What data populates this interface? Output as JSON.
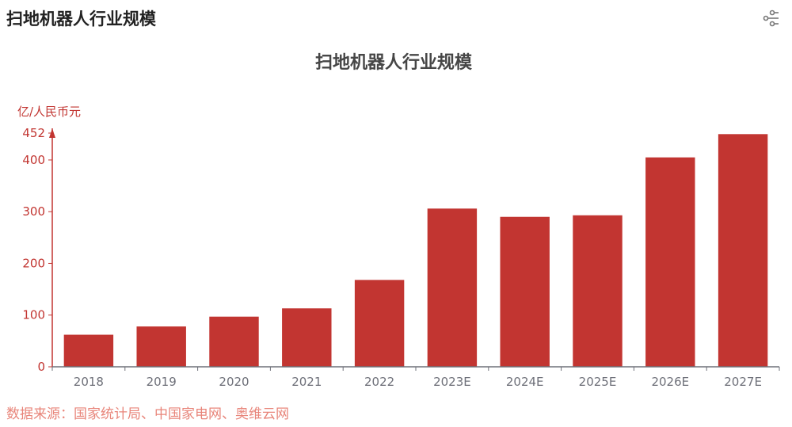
{
  "header": {
    "title": "扫地机器人行业规模",
    "share_icon": "share-icon"
  },
  "chart_data": {
    "type": "bar",
    "title": "扫地机器人行业规模",
    "ylabel": "亿/人民币元",
    "xlabel": "",
    "categories": [
      "2018",
      "2019",
      "2020",
      "2021",
      "2022",
      "2023E",
      "2024E",
      "2025E",
      "2026E",
      "2027E"
    ],
    "values": [
      62,
      78,
      97,
      113,
      168,
      306,
      290,
      293,
      405,
      450
    ],
    "y_ticks": [
      "0",
      "100",
      "200",
      "300",
      "400",
      "452"
    ],
    "ylim": [
      0,
      452
    ],
    "grid": false,
    "bar_color": "#c23531",
    "axis_color": "#c23531",
    "x_axis_color": "#6e7079",
    "x_tick_color": "#6e7079"
  },
  "footer": {
    "source": "数据来源：国家统计局、中国家电网、奥维云网",
    "source_color": "#e8857a"
  }
}
